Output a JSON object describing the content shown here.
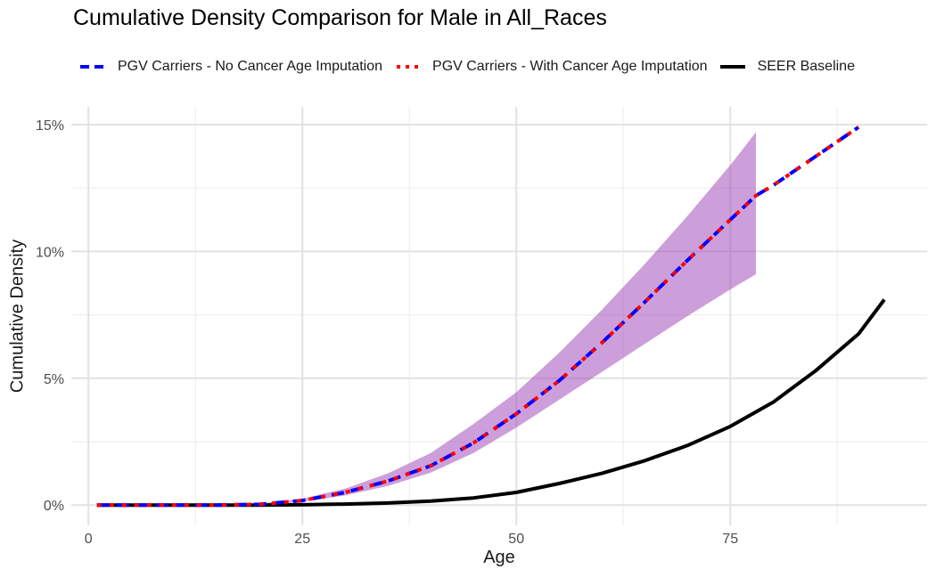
{
  "chart_data": {
    "type": "line",
    "title": "Cumulative Density Comparison for Male in All_Races",
    "xlabel": "Age",
    "ylabel": "Cumulative Density",
    "xlim": [
      -2,
      98
    ],
    "ylim": [
      -0.008,
      0.157
    ],
    "x_ticks": [
      0,
      25,
      50,
      75
    ],
    "x_tick_labels": [
      "0",
      "25",
      "50",
      "75"
    ],
    "y_ticks": [
      0,
      0.05,
      0.1,
      0.15
    ],
    "y_tick_labels": [
      "0%",
      "5%",
      "10%",
      "15%"
    ],
    "grid": true,
    "legend_position": "top",
    "series": [
      {
        "name": "PGV Carriers - No Cancer Age Imputation",
        "color": "#0000ff",
        "style": "dashed",
        "x": [
          1,
          5,
          10,
          15,
          20,
          25,
          30,
          35,
          40,
          45,
          50,
          55,
          60,
          65,
          70,
          75,
          78,
          80,
          85,
          90
        ],
        "y": [
          0,
          0,
          0,
          0,
          0.0003,
          0.0018,
          0.005,
          0.0095,
          0.0155,
          0.0245,
          0.036,
          0.049,
          0.064,
          0.08,
          0.0965,
          0.1125,
          0.122,
          0.126,
          0.1375,
          0.149
        ]
      },
      {
        "name": "PGV Carriers - With Cancer Age Imputation",
        "color": "#ff0000",
        "style": "dotted",
        "x": [
          1,
          5,
          10,
          15,
          20,
          25,
          30,
          35,
          40,
          45,
          50,
          55,
          60,
          65,
          70,
          75,
          78,
          80,
          85,
          90
        ],
        "y": [
          0,
          0,
          0,
          0,
          0.0003,
          0.0018,
          0.005,
          0.0095,
          0.0155,
          0.0245,
          0.036,
          0.049,
          0.064,
          0.08,
          0.0965,
          0.1125,
          0.122,
          0.126,
          0.1375,
          0.149
        ]
      },
      {
        "name": "SEER Baseline",
        "color": "#000000",
        "style": "solid",
        "x": [
          1,
          10,
          20,
          25,
          30,
          35,
          40,
          45,
          50,
          55,
          60,
          65,
          70,
          75,
          80,
          85,
          90,
          93
        ],
        "y": [
          0,
          0,
          0,
          0.0001,
          0.0004,
          0.0008,
          0.0016,
          0.0028,
          0.005,
          0.0085,
          0.0125,
          0.0175,
          0.0235,
          0.031,
          0.0405,
          0.053,
          0.0675,
          0.081
        ]
      }
    ],
    "ribbon": {
      "color": "#9b3fb5",
      "opacity": 0.5,
      "x": [
        20,
        25,
        30,
        35,
        40,
        45,
        50,
        55,
        60,
        65,
        70,
        75,
        78
      ],
      "lower": [
        0.0002,
        0.0013,
        0.0038,
        0.0075,
        0.0128,
        0.0205,
        0.0305,
        0.0415,
        0.0525,
        0.0635,
        0.0745,
        0.085,
        0.091
      ],
      "upper": [
        0.0006,
        0.0025,
        0.0065,
        0.0125,
        0.0205,
        0.032,
        0.0445,
        0.06,
        0.077,
        0.095,
        0.114,
        0.134,
        0.147
      ]
    }
  }
}
